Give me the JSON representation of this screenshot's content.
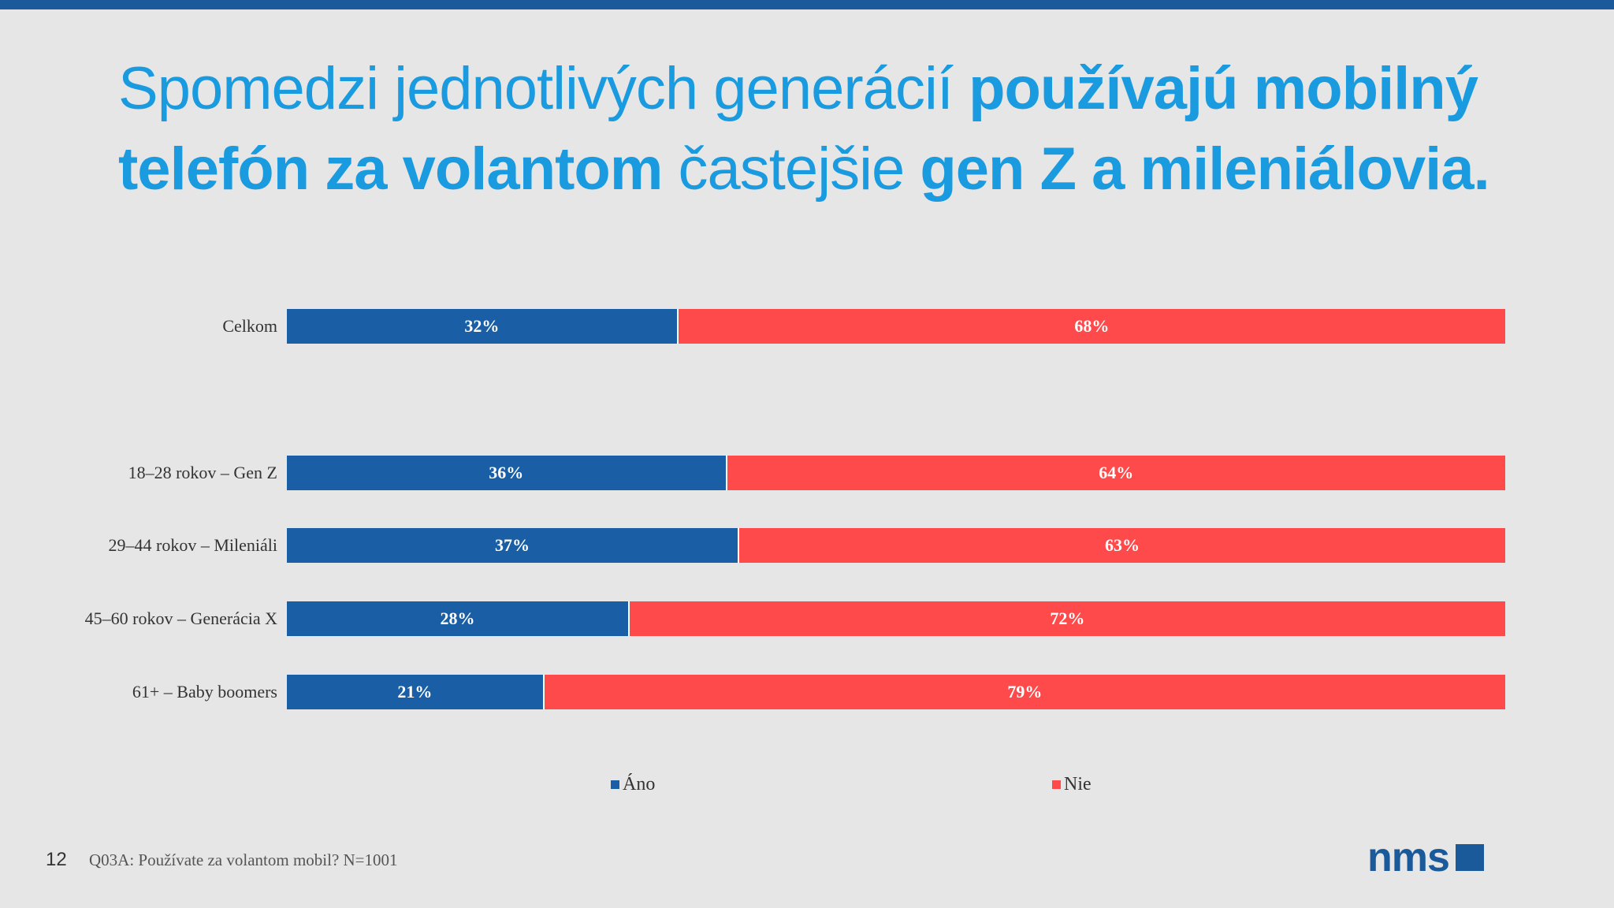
{
  "title": {
    "part1": "Spomedzi jednotlivých generácií ",
    "part2": "používajú mobilný telefón za volantom",
    "part3": " častejšie ",
    "part4": "gen Z a mileniálovia."
  },
  "chart_data": {
    "type": "bar",
    "orientation": "horizontal",
    "stacked": true,
    "categories": [
      "Celkom",
      "18–28 rokov – Gen Z",
      "29–44 rokov – Mileniáli",
      "45–60 rokov – Generácia X",
      "61+ – Baby boomers"
    ],
    "series": [
      {
        "name": "Áno",
        "values": [
          32,
          36,
          37,
          28,
          21
        ],
        "color": "#1a5fa6"
      },
      {
        "name": "Nie",
        "values": [
          68,
          64,
          63,
          72,
          79
        ],
        "color": "#fe4a4a"
      }
    ],
    "xlim": [
      0,
      100
    ],
    "unit": "%",
    "legend": "bottom",
    "grid": false
  },
  "footer": {
    "page_number": "12",
    "note": "Q03A: Používate za volantom mobil? N=1001",
    "logo_text": "nms"
  },
  "colors": {
    "accent": "#1a9be0",
    "brand": "#1b5a9a"
  }
}
